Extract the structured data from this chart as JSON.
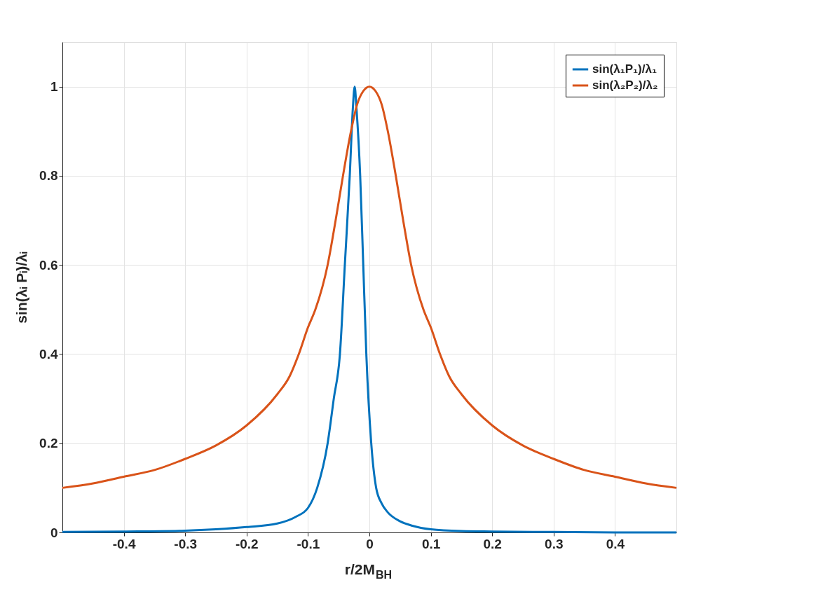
{
  "chart_data": {
    "type": "line",
    "xlabel": "r/2M$_{BH}$",
    "ylabel": "sin(λᵢ Pᵢ)/λᵢ",
    "xlim": [
      -0.5,
      0.5
    ],
    "xticks": [
      -0.4,
      -0.3,
      -0.2,
      -0.1,
      0,
      0.1,
      0.2,
      0.3,
      0.4
    ],
    "ylim": [
      0,
      1.1
    ],
    "yticks": [
      0,
      0.2,
      0.4,
      0.6,
      0.8,
      1
    ],
    "grid": true,
    "legend": "top right",
    "marker": "none",
    "line_style": "solid",
    "series": [
      {
        "name": "sin(λ₁P₁)/λ₁",
        "color": "#0072bd",
        "x": [
          -0.5,
          -0.4,
          -0.3,
          -0.25,
          -0.2,
          -0.15,
          -0.12,
          -0.1,
          -0.085,
          -0.068,
          -0.058,
          -0.048,
          -0.04,
          -0.032,
          -0.027,
          -0.024,
          -0.021,
          -0.015,
          -0.01,
          -0.005,
          0.003,
          0.011,
          0.02,
          0.03,
          0.05,
          0.07,
          0.1,
          0.15,
          0.2,
          0.3,
          0.4,
          0.5
        ],
        "values": [
          0.001,
          0.002,
          0.004,
          0.007,
          0.012,
          0.02,
          0.035,
          0.055,
          0.1,
          0.2,
          0.3,
          0.4,
          0.6,
          0.8,
          0.95,
          1,
          0.95,
          0.8,
          0.6,
          0.4,
          0.2,
          0.1,
          0.065,
          0.045,
          0.025,
          0.015,
          0.007,
          0.003,
          0.002,
          0.001,
          0,
          0
        ]
      },
      {
        "name": "sin(λ₂P₂)/λ₂",
        "color": "#d95319",
        "x": [
          -0.5,
          -0.45,
          -0.4,
          -0.35,
          -0.3,
          -0.25,
          -0.2,
          -0.15,
          -0.13,
          -0.115,
          -0.1,
          -0.088,
          -0.068,
          -0.055,
          -0.043,
          -0.03,
          -0.02,
          -0.01,
          0,
          0.01,
          0.02,
          0.03,
          0.043,
          0.055,
          0.068,
          0.088,
          0.1,
          0.115,
          0.13,
          0.15,
          0.2,
          0.25,
          0.3,
          0.35,
          0.4,
          0.45,
          0.5
        ],
        "values": [
          0.1,
          0.11,
          0.125,
          0.14,
          0.165,
          0.195,
          0.24,
          0.31,
          0.35,
          0.4,
          0.46,
          0.5,
          0.6,
          0.7,
          0.8,
          0.9,
          0.96,
          0.99,
          1,
          0.99,
          0.96,
          0.9,
          0.8,
          0.7,
          0.6,
          0.5,
          0.46,
          0.4,
          0.35,
          0.31,
          0.24,
          0.195,
          0.165,
          0.14,
          0.125,
          0.11,
          0.1
        ]
      }
    ]
  }
}
